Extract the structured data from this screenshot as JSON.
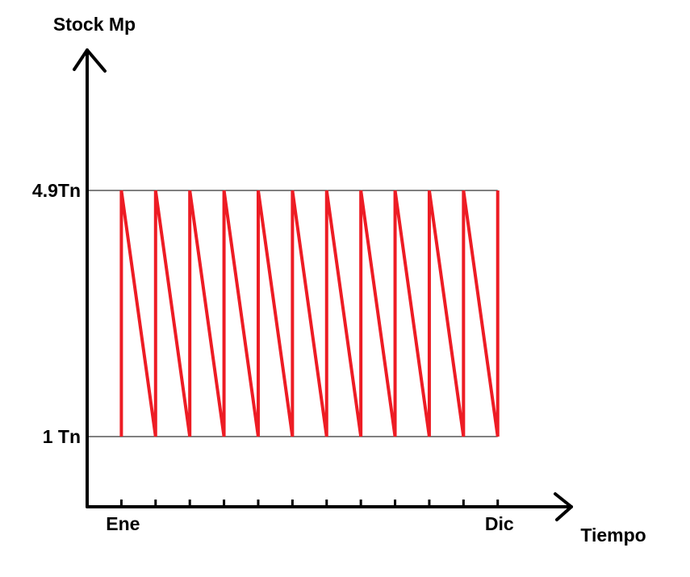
{
  "chart_data": {
    "type": "line",
    "x_label": "Tiempo",
    "y_label": "Stock Mp",
    "categories": [
      "Ene",
      null,
      null,
      null,
      null,
      null,
      null,
      null,
      null,
      null,
      null,
      "Dic"
    ],
    "x": [
      0,
      0,
      1,
      1,
      2,
      2,
      3,
      3,
      4,
      4,
      5,
      5,
      6,
      6,
      7,
      7,
      8,
      8,
      9,
      9,
      10,
      10,
      11,
      11
    ],
    "series": [
      {
        "color": "#ed1c24",
        "values": [
          1,
          4.9,
          1,
          4.9,
          1,
          4.9,
          1,
          4.9,
          1,
          4.9,
          1,
          4.9,
          1,
          4.9,
          1,
          4.9,
          1,
          4.9,
          1,
          4.9,
          1,
          4.9,
          1,
          4.9
        ]
      }
    ],
    "xlim": [
      -1,
      13.2
    ],
    "ylim": [
      -0.1,
      7.15
    ],
    "yticks": [
      {
        "value": 1,
        "label": "1 Tn"
      },
      {
        "value": 4.9,
        "label": "4.9Tn"
      }
    ],
    "grid": true
  }
}
